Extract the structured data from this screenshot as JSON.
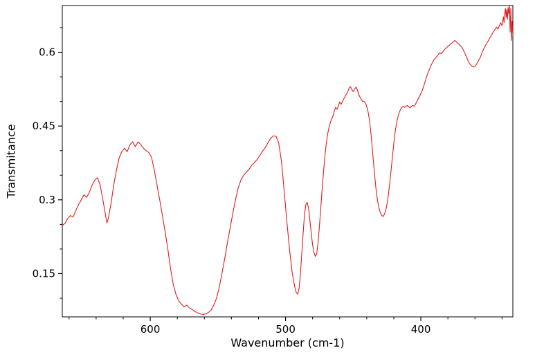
{
  "figure": {
    "background": "#ffffff",
    "axis_color": "#000000"
  },
  "chart_data": {
    "type": "line",
    "title": "",
    "xlabel": "Wavenumber (cm-1)",
    "ylabel": "Transmitance",
    "x_axis_reversed": true,
    "xlim": [
      665,
      332
    ],
    "ylim": [
      0.062,
      0.695
    ],
    "grid": false,
    "legend": "none",
    "x_ticks": [
      {
        "value": 600,
        "label": "600"
      },
      {
        "value": 500,
        "label": "500"
      },
      {
        "value": 400,
        "label": "400"
      }
    ],
    "x_minor_ticks": [
      660,
      640,
      620,
      580,
      560,
      540,
      520,
      480,
      460,
      440,
      420,
      380,
      360,
      340
    ],
    "y_ticks": [
      {
        "value": 0.15,
        "label": "0.15"
      },
      {
        "value": 0.3,
        "label": "0.3"
      },
      {
        "value": 0.45,
        "label": "0.45"
      },
      {
        "value": 0.6,
        "label": "0.6"
      }
    ],
    "y_minor_ticks": [
      0.1,
      0.2,
      0.25,
      0.35,
      0.4,
      0.5,
      0.55,
      0.65
    ],
    "series": [
      {
        "name": "IR transmittance spectrum",
        "color": "#e31a1c",
        "points": [
          [
            665,
            0.248
          ],
          [
            663,
            0.252
          ],
          [
            661,
            0.262
          ],
          [
            659,
            0.268
          ],
          [
            657,
            0.265
          ],
          [
            655,
            0.278
          ],
          [
            653,
            0.29
          ],
          [
            651,
            0.3
          ],
          [
            649,
            0.31
          ],
          [
            647,
            0.305
          ],
          [
            645,
            0.315
          ],
          [
            643,
            0.33
          ],
          [
            641,
            0.34
          ],
          [
            639,
            0.345
          ],
          [
            637,
            0.33
          ],
          [
            635,
            0.3
          ],
          [
            633,
            0.268
          ],
          [
            632,
            0.253
          ],
          [
            631,
            0.262
          ],
          [
            629,
            0.292
          ],
          [
            627,
            0.33
          ],
          [
            625,
            0.36
          ],
          [
            623,
            0.385
          ],
          [
            621,
            0.398
          ],
          [
            619,
            0.405
          ],
          [
            617,
            0.398
          ],
          [
            615,
            0.412
          ],
          [
            613,
            0.418
          ],
          [
            611,
            0.408
          ],
          [
            609,
            0.418
          ],
          [
            607,
            0.412
          ],
          [
            605,
            0.405
          ],
          [
            603,
            0.4
          ],
          [
            601,
            0.396
          ],
          [
            599,
            0.386
          ],
          [
            597,
            0.36
          ],
          [
            595,
            0.33
          ],
          [
            593,
            0.3
          ],
          [
            591,
            0.268
          ],
          [
            589,
            0.235
          ],
          [
            587,
            0.2
          ],
          [
            585,
            0.16
          ],
          [
            583,
            0.128
          ],
          [
            581,
            0.108
          ],
          [
            579,
            0.095
          ],
          [
            577,
            0.088
          ],
          [
            575,
            0.082
          ],
          [
            573,
            0.086
          ],
          [
            571,
            0.08
          ],
          [
            569,
            0.077
          ],
          [
            567,
            0.073
          ],
          [
            565,
            0.07
          ],
          [
            563,
            0.068
          ],
          [
            561,
            0.067
          ],
          [
            559,
            0.068
          ],
          [
            557,
            0.071
          ],
          [
            555,
            0.076
          ],
          [
            553,
            0.086
          ],
          [
            551,
            0.1
          ],
          [
            549,
            0.122
          ],
          [
            547,
            0.15
          ],
          [
            545,
            0.18
          ],
          [
            543,
            0.212
          ],
          [
            541,
            0.242
          ],
          [
            539,
            0.272
          ],
          [
            537,
            0.3
          ],
          [
            535,
            0.324
          ],
          [
            533,
            0.34
          ],
          [
            531,
            0.35
          ],
          [
            529,
            0.356
          ],
          [
            527,
            0.362
          ],
          [
            525,
            0.37
          ],
          [
            523,
            0.376
          ],
          [
            521,
            0.382
          ],
          [
            519,
            0.39
          ],
          [
            517,
            0.399
          ],
          [
            515,
            0.406
          ],
          [
            513,
            0.416
          ],
          [
            511,
            0.425
          ],
          [
            509,
            0.43
          ],
          [
            507,
            0.429
          ],
          [
            505,
            0.415
          ],
          [
            503,
            0.378
          ],
          [
            501,
            0.318
          ],
          [
            499,
            0.255
          ],
          [
            497,
            0.198
          ],
          [
            495,
            0.15
          ],
          [
            493,
            0.12
          ],
          [
            492,
            0.111
          ],
          [
            491,
            0.108
          ],
          [
            490,
            0.12
          ],
          [
            489,
            0.15
          ],
          [
            488,
            0.19
          ],
          [
            487,
            0.232
          ],
          [
            486,
            0.27
          ],
          [
            485,
            0.29
          ],
          [
            484,
            0.295
          ],
          [
            483,
            0.283
          ],
          [
            482,
            0.258
          ],
          [
            481,
            0.232
          ],
          [
            480,
            0.208
          ],
          [
            479,
            0.193
          ],
          [
            478,
            0.185
          ],
          [
            477,
            0.19
          ],
          [
            476,
            0.212
          ],
          [
            475,
            0.245
          ],
          [
            474,
            0.282
          ],
          [
            473,
            0.32
          ],
          [
            472,
            0.355
          ],
          [
            471,
            0.386
          ],
          [
            470,
            0.412
          ],
          [
            469,
            0.432
          ],
          [
            468,
            0.446
          ],
          [
            467,
            0.456
          ],
          [
            466,
            0.464
          ],
          [
            465,
            0.47
          ],
          [
            464,
            0.48
          ],
          [
            463,
            0.488
          ],
          [
            462,
            0.484
          ],
          [
            461,
            0.49
          ],
          [
            460,
            0.499
          ],
          [
            459,
            0.494
          ],
          [
            458,
            0.499
          ],
          [
            457,
            0.505
          ],
          [
            456,
            0.51
          ],
          [
            455,
            0.515
          ],
          [
            454,
            0.52
          ],
          [
            453,
            0.527
          ],
          [
            452,
            0.53
          ],
          [
            451,
            0.524
          ],
          [
            450,
            0.52
          ],
          [
            449,
            0.525
          ],
          [
            448,
            0.529
          ],
          [
            447,
            0.524
          ],
          [
            446,
            0.515
          ],
          [
            445,
            0.509
          ],
          [
            444,
            0.504
          ],
          [
            443,
            0.5
          ],
          [
            442,
            0.5
          ],
          [
            441,
            0.497
          ],
          [
            440,
            0.49
          ],
          [
            439,
            0.479
          ],
          [
            438,
            0.463
          ],
          [
            437,
            0.438
          ],
          [
            436,
            0.408
          ],
          [
            435,
            0.376
          ],
          [
            434,
            0.346
          ],
          [
            433,
            0.318
          ],
          [
            432,
            0.298
          ],
          [
            431,
            0.284
          ],
          [
            430,
            0.274
          ],
          [
            429,
            0.269
          ],
          [
            428,
            0.266
          ],
          [
            427,
            0.27
          ],
          [
            426,
            0.278
          ],
          [
            425,
            0.291
          ],
          [
            424,
            0.31
          ],
          [
            423,
            0.334
          ],
          [
            422,
            0.36
          ],
          [
            421,
            0.388
          ],
          [
            420,
            0.414
          ],
          [
            419,
            0.438
          ],
          [
            418,
            0.455
          ],
          [
            417,
            0.468
          ],
          [
            416,
            0.477
          ],
          [
            415,
            0.484
          ],
          [
            414,
            0.488
          ],
          [
            413,
            0.49
          ],
          [
            412,
            0.488
          ],
          [
            411,
            0.49
          ],
          [
            410,
            0.492
          ],
          [
            409,
            0.489
          ],
          [
            408,
            0.487
          ],
          [
            407,
            0.49
          ],
          [
            406,
            0.492
          ],
          [
            405,
            0.49
          ],
          [
            404,
            0.494
          ],
          [
            403,
            0.5
          ],
          [
            402,
            0.505
          ],
          [
            401,
            0.51
          ],
          [
            400,
            0.516
          ],
          [
            399,
            0.522
          ],
          [
            398,
            0.53
          ],
          [
            397,
            0.539
          ],
          [
            396,
            0.548
          ],
          [
            395,
            0.556
          ],
          [
            394,
            0.563
          ],
          [
            393,
            0.57
          ],
          [
            392,
            0.576
          ],
          [
            391,
            0.581
          ],
          [
            390,
            0.586
          ],
          [
            389,
            0.589
          ],
          [
            388,
            0.592
          ],
          [
            387,
            0.596
          ],
          [
            386,
            0.599
          ],
          [
            385,
            0.597
          ],
          [
            384,
            0.6
          ],
          [
            383,
            0.604
          ],
          [
            382,
            0.607
          ],
          [
            381,
            0.609
          ],
          [
            380,
            0.612
          ],
          [
            379,
            0.614
          ],
          [
            378,
            0.617
          ],
          [
            377,
            0.619
          ],
          [
            376,
            0.621
          ],
          [
            375,
            0.624
          ],
          [
            374,
            0.622
          ],
          [
            373,
            0.619
          ],
          [
            372,
            0.617
          ],
          [
            371,
            0.614
          ],
          [
            370,
            0.611
          ],
          [
            369,
            0.607
          ],
          [
            368,
            0.601
          ],
          [
            367,
            0.595
          ],
          [
            366,
            0.589
          ],
          [
            365,
            0.582
          ],
          [
            364,
            0.577
          ],
          [
            363,
            0.574
          ],
          [
            362,
            0.571
          ],
          [
            361,
            0.57
          ],
          [
            360,
            0.572
          ],
          [
            359,
            0.575
          ],
          [
            358,
            0.58
          ],
          [
            357,
            0.585
          ],
          [
            356,
            0.59
          ],
          [
            355,
            0.597
          ],
          [
            354,
            0.604
          ],
          [
            353,
            0.61
          ],
          [
            352,
            0.615
          ],
          [
            351,
            0.62
          ],
          [
            350,
            0.624
          ],
          [
            349,
            0.629
          ],
          [
            348,
            0.634
          ],
          [
            347,
            0.639
          ],
          [
            346,
            0.643
          ],
          [
            345,
            0.647
          ],
          [
            344,
            0.651
          ],
          [
            343,
            0.647
          ],
          [
            342,
            0.654
          ],
          [
            341,
            0.66
          ],
          [
            340,
            0.654
          ],
          [
            339,
            0.672
          ],
          [
            338.5,
            0.66
          ],
          [
            338,
            0.679
          ],
          [
            337.5,
            0.689
          ],
          [
            337,
            0.671
          ],
          [
            336.5,
            0.687
          ],
          [
            336,
            0.667
          ],
          [
            335.5,
            0.691
          ],
          [
            335,
            0.679
          ],
          [
            334.5,
            0.694
          ],
          [
            334,
            0.641
          ],
          [
            333.5,
            0.689
          ],
          [
            333,
            0.624
          ],
          [
            332.5,
            0.663
          ],
          [
            332,
            0.634
          ]
        ]
      }
    ]
  }
}
